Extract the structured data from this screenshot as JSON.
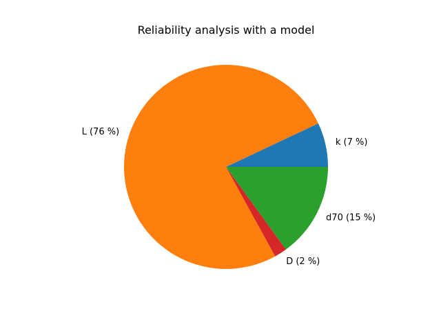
{
  "chart_data": {
    "type": "pie",
    "title": "Reliability analysis with a model",
    "categories": [
      "k",
      "L",
      "D",
      "d70"
    ],
    "values": [
      7,
      76,
      2,
      15
    ],
    "labels": [
      "k (7 %)",
      "L (76 %)",
      "D (2 %)",
      "d70 (15 %)"
    ],
    "colors": [
      "#1f77b4",
      "#ff7f0e",
      "#d62728",
      "#2ca02c"
    ],
    "start_angle_deg": 0,
    "direction": "counterclockwise",
    "legend": "none",
    "grid": false
  }
}
